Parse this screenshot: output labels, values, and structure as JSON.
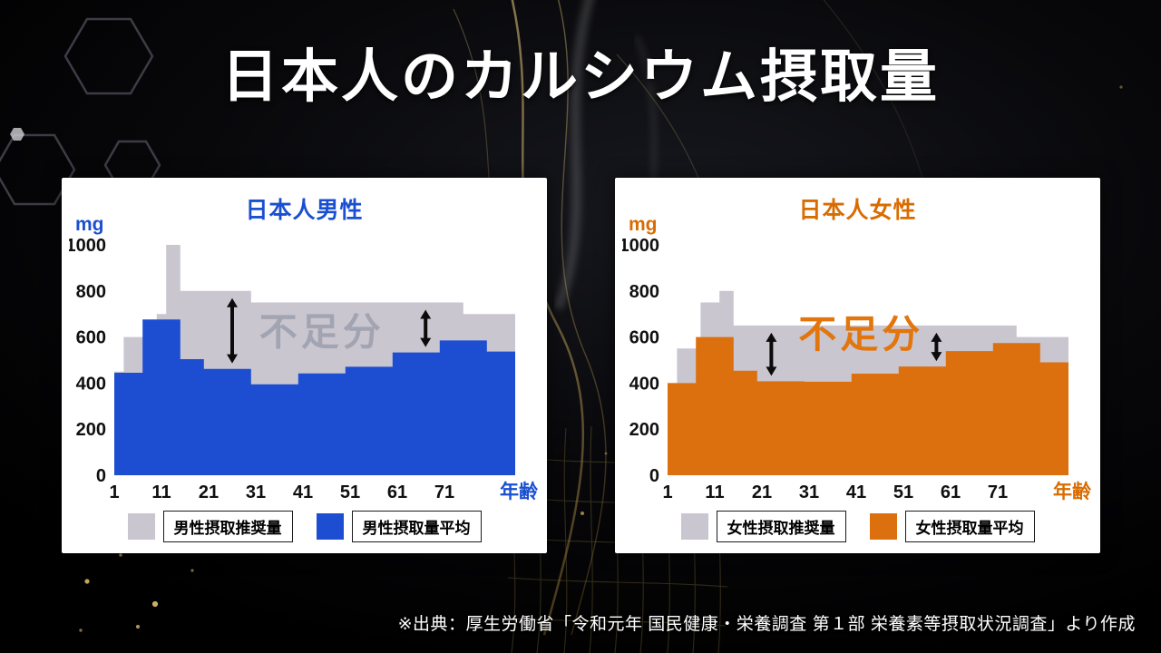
{
  "title": "日本人のカルシウム摂取量",
  "source": "※出典：厚生労働省「令和元年 国民健康・栄養調査 第１部 栄養素等摂取状況調査」より作成",
  "chart_data": [
    {
      "type": "area",
      "title": "日本人男性",
      "accent": "#1a4fd1",
      "unit_label": "mg",
      "x_axis_label": "年齢",
      "xlim": [
        1,
        86
      ],
      "ylim": [
        0,
        1000
      ],
      "yticks": [
        0,
        200,
        400,
        600,
        800,
        1000
      ],
      "xticks": [
        1,
        11,
        21,
        31,
        41,
        51,
        61,
        71
      ],
      "annotation": {
        "text": "不足分",
        "age": 45,
        "value": 620,
        "color": "#a2a4b2"
      },
      "arrow_ages": [
        26,
        67
      ],
      "legend_position": "bottom",
      "grid": false,
      "series": [
        {
          "name": "男性摂取推奨量",
          "role": "recommended",
          "color": "#c9c6d0",
          "age_groups": [
            [
              1,
              3,
              450
            ],
            [
              3,
              6,
              600
            ],
            [
              6,
              8,
              600
            ],
            [
              8,
              10,
              650
            ],
            [
              10,
              12,
              700
            ],
            [
              12,
              15,
              1000
            ],
            [
              15,
              18,
              800
            ],
            [
              18,
              30,
              800
            ],
            [
              30,
              50,
              750
            ],
            [
              50,
              65,
              750
            ],
            [
              65,
              75,
              750
            ],
            [
              75,
              86,
              700
            ]
          ]
        },
        {
          "name": "男性摂取量平均",
          "role": "average",
          "color": "#1d4ed2",
          "age_groups": [
            [
              1,
              7,
              445
            ],
            [
              7,
              15,
              676
            ],
            [
              15,
              20,
              504
            ],
            [
              20,
              30,
              462
            ],
            [
              30,
              40,
              395
            ],
            [
              40,
              50,
              442
            ],
            [
              50,
              60,
              471
            ],
            [
              60,
              70,
              533
            ],
            [
              70,
              80,
              585
            ],
            [
              80,
              86,
              537
            ]
          ]
        }
      ]
    },
    {
      "type": "area",
      "title": "日本人女性",
      "accent": "#d96c00",
      "unit_label": "mg",
      "x_axis_label": "年齢",
      "xlim": [
        1,
        86
      ],
      "ylim": [
        0,
        1000
      ],
      "yticks": [
        0,
        200,
        400,
        600,
        800,
        1000
      ],
      "xticks": [
        1,
        11,
        21,
        31,
        41,
        51,
        61,
        71
      ],
      "annotation": {
        "text": "不足分",
        "age": 42,
        "value": 610,
        "color": "#e2760d"
      },
      "arrow_ages": [
        23,
        58
      ],
      "legend_position": "bottom",
      "grid": false,
      "series": [
        {
          "name": "女性摂取推奨量",
          "role": "recommended",
          "color": "#c9c6d0",
          "age_groups": [
            [
              1,
              3,
              400
            ],
            [
              3,
              6,
              550
            ],
            [
              6,
              8,
              550
            ],
            [
              8,
              10,
              750
            ],
            [
              10,
              12,
              750
            ],
            [
              12,
              15,
              800
            ],
            [
              15,
              18,
              650
            ],
            [
              18,
              30,
              650
            ],
            [
              30,
              50,
              650
            ],
            [
              50,
              65,
              650
            ],
            [
              65,
              75,
              650
            ],
            [
              75,
              86,
              600
            ]
          ]
        },
        {
          "name": "女性摂取量平均",
          "role": "average",
          "color": "#dd700e",
          "age_groups": [
            [
              1,
              7,
              400
            ],
            [
              7,
              15,
              600
            ],
            [
              15,
              20,
              454
            ],
            [
              20,
              30,
              408
            ],
            [
              30,
              40,
              406
            ],
            [
              40,
              50,
              441
            ],
            [
              50,
              60,
              472
            ],
            [
              60,
              70,
              539
            ],
            [
              70,
              80,
              574
            ],
            [
              80,
              86,
              490
            ]
          ]
        }
      ]
    }
  ]
}
